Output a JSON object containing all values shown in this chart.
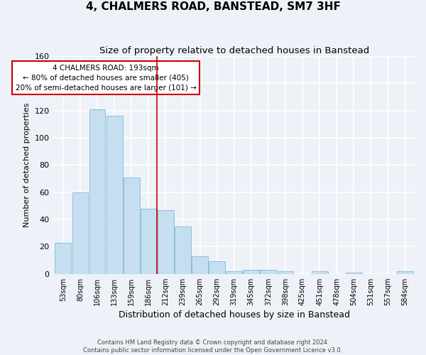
{
  "title": "4, CHALMERS ROAD, BANSTEAD, SM7 3HF",
  "subtitle": "Size of property relative to detached houses in Banstead",
  "xlabel": "Distribution of detached houses by size in Banstead",
  "ylabel": "Number of detached properties",
  "categories": [
    "53sqm",
    "80sqm",
    "106sqm",
    "133sqm",
    "159sqm",
    "186sqm",
    "212sqm",
    "239sqm",
    "265sqm",
    "292sqm",
    "319sqm",
    "345sqm",
    "372sqm",
    "398sqm",
    "425sqm",
    "451sqm",
    "478sqm",
    "504sqm",
    "531sqm",
    "557sqm",
    "584sqm"
  ],
  "values": [
    23,
    60,
    121,
    116,
    71,
    48,
    47,
    35,
    13,
    9,
    2,
    3,
    3,
    2,
    0,
    2,
    0,
    1,
    0,
    0,
    2
  ],
  "bar_color": "#c5dff0",
  "bar_edge_color": "#7fb8d8",
  "vline_x": 5.5,
  "vline_color": "#cc0000",
  "annotation_text": "4 CHALMERS ROAD: 193sqm\n← 80% of detached houses are smaller (405)\n20% of semi-detached houses are larger (101) →",
  "annotation_box_color": "white",
  "annotation_box_edge_color": "#cc0000",
  "annotation_fontsize": 7.5,
  "ylim": [
    0,
    160
  ],
  "yticks": [
    0,
    20,
    40,
    60,
    80,
    100,
    120,
    140,
    160
  ],
  "title_fontsize": 11,
  "subtitle_fontsize": 9.5,
  "xlabel_fontsize": 9,
  "ylabel_fontsize": 8,
  "footer_line1": "Contains HM Land Registry data © Crown copyright and database right 2024.",
  "footer_line2": "Contains public sector information licensed under the Open Government Licence v3.0.",
  "background_color": "#eef2f8",
  "grid_color": "#ffffff"
}
